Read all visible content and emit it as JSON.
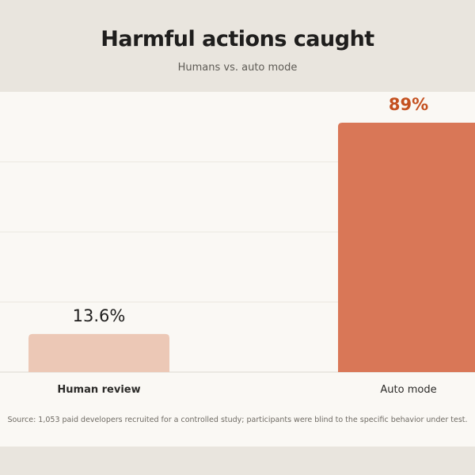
{
  "chart_data": {
    "type": "bar",
    "title": "Harmful actions caught",
    "subtitle": "Humans vs. auto mode",
    "categories": [
      "Human review",
      "Auto mode"
    ],
    "values": [
      13.6,
      89
    ],
    "value_labels": [
      "13.6%",
      "89%"
    ],
    "ylim": [
      0,
      100
    ],
    "grid": true,
    "source": "Source: 1,053 paid developers recruited for a controlled study; participants were blind to the specific behavior under test.",
    "colors": [
      "#ecc8b6",
      "#d97757"
    ],
    "label_colors": [
      "#1f1e1d",
      "#c4501f"
    ]
  }
}
